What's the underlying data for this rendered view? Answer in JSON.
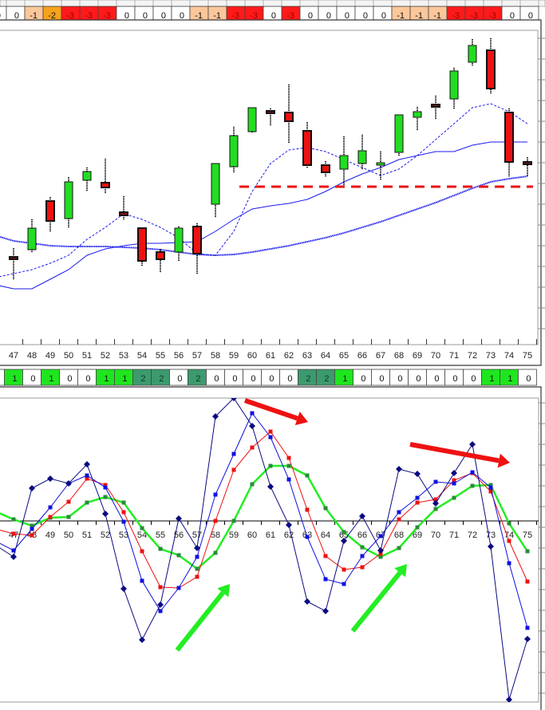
{
  "chart_data": [
    {
      "type": "table",
      "name_hint": "",
      "values": [
        0,
        0,
        -1,
        -2,
        -3,
        -3,
        -3,
        0,
        0,
        0,
        0,
        -1,
        -1,
        -3,
        -3,
        0,
        -3,
        0,
        0,
        0,
        0,
        0,
        -1,
        -1,
        -1,
        -3,
        -3,
        -3,
        0,
        0
      ],
      "colors": {
        "0": "#ffffff",
        "-1": "#fbc79a",
        "-2": "#f7a21b",
        "-3": "#ff1a1a"
      }
    },
    {
      "type": "candlestick",
      "categories": [
        "47",
        "48",
        "49",
        "50",
        "51",
        "52",
        "53",
        "54",
        "55",
        "56",
        "57",
        "58",
        "59",
        "60",
        "61",
        "62",
        "63",
        "64",
        "65",
        "66",
        "67",
        "68",
        "69",
        "70",
        "71",
        "72",
        "73",
        "74",
        "75"
      ],
      "ohlc": [
        [
          178,
          189,
          149,
          176
        ],
        [
          187,
          225,
          184,
          214
        ],
        [
          248,
          253,
          210,
          223
        ],
        [
          226,
          278,
          215,
          272
        ],
        [
          274,
          290,
          260,
          285
        ],
        [
          271,
          301,
          258,
          265
        ],
        [
          234,
          254,
          225,
          230
        ],
        [
          214,
          214,
          167,
          173
        ],
        [
          184,
          188,
          158,
          175
        ],
        [
          184,
          216,
          172,
          214
        ],
        [
          216,
          220,
          157,
          182
        ],
        [
          244,
          295,
          228,
          295
        ],
        [
          291,
          341,
          284,
          330
        ],
        [
          335,
          365,
          333,
          365
        ],
        [
          361,
          364,
          342,
          359
        ],
        [
          359,
          394,
          320,
          348
        ],
        [
          336,
          347,
          290,
          293
        ],
        [
          293,
          298,
          278,
          284
        ],
        [
          288,
          329,
          267,
          305
        ],
        [
          295,
          331,
          288,
          311
        ],
        [
          294,
          310,
          274,
          296
        ],
        [
          309,
          356,
          304,
          356
        ],
        [
          353,
          366,
          336,
          360
        ],
        [
          369,
          380,
          350,
          366
        ],
        [
          376,
          415,
          364,
          411
        ],
        [
          422,
          451,
          417,
          443
        ],
        [
          437,
          452,
          383,
          389
        ],
        [
          359,
          364,
          278,
          297
        ],
        [
          297,
          303,
          279,
          295
        ]
      ],
      "doji": [
        "47",
        "53",
        "61",
        "70",
        "75"
      ],
      "up_color": "#22dd22",
      "down_color": "#ee1111",
      "doji_color": "#222222",
      "moving_averages": [
        {
          "style": "dashed",
          "color": "#1a1aee",
          "x": [
            46,
            47,
            48,
            49,
            50,
            51,
            52,
            53,
            54,
            55,
            56,
            57,
            58,
            59,
            60,
            61,
            62,
            63,
            64,
            65,
            66,
            67,
            68,
            69,
            70,
            71,
            72,
            73,
            74,
            75
          ],
          "values": [
            152,
            157,
            162,
            170,
            180,
            200,
            215,
            232,
            225,
            215,
            202,
            182,
            180,
            210,
            260,
            295,
            312,
            315,
            310,
            300,
            290,
            280,
            288,
            305,
            325,
            345,
            365,
            370,
            360,
            345
          ]
        },
        {
          "style": "thin",
          "color": "#1a1aee",
          "x": [
            46,
            47,
            48,
            49,
            50,
            51,
            52,
            53,
            54,
            55,
            56,
            57,
            58,
            59,
            60,
            61,
            62,
            63,
            64,
            65,
            66,
            67,
            68,
            69,
            70,
            71,
            72,
            73,
            74,
            75
          ],
          "values": [
            143,
            138,
            138,
            150,
            162,
            180,
            188,
            192,
            195,
            195,
            196,
            197,
            210,
            225,
            238,
            242,
            245,
            250,
            260,
            272,
            282,
            290,
            300,
            305,
            310,
            310,
            318,
            322,
            322,
            322
          ]
        },
        {
          "style": "thick",
          "color": "#1a1aee",
          "x": [
            46,
            47,
            48,
            49,
            50,
            51,
            52,
            53,
            54,
            55,
            56,
            57,
            58,
            59,
            60,
            61,
            62,
            63,
            64,
            65,
            66,
            67,
            68,
            69,
            70,
            71,
            72,
            73,
            74,
            75
          ],
          "values": [
            205,
            198,
            195,
            192,
            191,
            191,
            191,
            190,
            189,
            187,
            184,
            181,
            180,
            181,
            184,
            188,
            192,
            197,
            202,
            208,
            215,
            222,
            230,
            238,
            246,
            255,
            264,
            272,
            276,
            279
          ]
        }
      ],
      "support_level": {
        "value": 266,
        "from": "59",
        "to": "75",
        "color": "#ee1111",
        "style": "dashed"
      },
      "grid": false,
      "xtick_labels": [
        "47",
        "48",
        "49",
        "50",
        "51",
        "52",
        "53",
        "54",
        "55",
        "56",
        "57",
        "58",
        "59",
        "60",
        "61",
        "62",
        "63",
        "64",
        "65",
        "66",
        "67",
        "68",
        "69",
        "70",
        "71",
        "72",
        "73",
        "74",
        "75"
      ]
    },
    {
      "type": "table",
      "values": [
        0,
        1,
        0,
        1,
        0,
        0,
        1,
        1,
        2,
        2,
        0,
        2,
        0,
        0,
        0,
        0,
        0,
        2,
        2,
        1,
        0,
        0,
        0,
        0,
        0,
        0,
        0,
        1,
        1,
        0
      ],
      "colors": {
        "0": "#ffffff",
        "1": "#1ee61e",
        "2": "#3c9a6e"
      }
    },
    {
      "type": "line",
      "x": [
        46,
        47,
        48,
        49,
        50,
        51,
        52,
        53,
        54,
        55,
        56,
        57,
        58,
        59,
        60,
        61,
        62,
        63,
        64,
        65,
        66,
        67,
        68,
        69,
        70,
        71,
        72,
        73,
        74,
        75
      ],
      "series": [
        {
          "color": "#0a0a80",
          "marker": "diamond",
          "width": 1,
          "values": [
            -30,
            -45,
            41,
            53,
            47,
            71,
            9,
            -85,
            -149,
            -105,
            3,
            -34,
            131,
            154,
            119,
            43,
            -5,
            -101,
            -113,
            -25,
            6,
            -37,
            65,
            59,
            22,
            60,
            96,
            -32,
            -224,
            -148
          ]
        },
        {
          "color": "#1010e0",
          "marker": "square",
          "width": 1,
          "values": [
            -25,
            -37,
            -10,
            17,
            47,
            57,
            42,
            -1,
            -75,
            -113,
            -84,
            -45,
            33,
            84,
            135,
            105,
            52,
            -20,
            -73,
            -79,
            -44,
            -19,
            11,
            29,
            49,
            47,
            61,
            42,
            -53,
            -134
          ]
        },
        {
          "color": "#ee1111",
          "marker": "square",
          "width": 1,
          "values": [
            -10,
            -16,
            -18,
            5,
            24,
            53,
            45,
            11,
            -38,
            -83,
            -84,
            -70,
            0,
            64,
            92,
            112,
            79,
            14,
            -44,
            -61,
            -58,
            -41,
            2,
            23,
            27,
            51,
            60,
            37,
            -25,
            -76
          ]
        },
        {
          "color": "#22ee22",
          "marker": "square",
          "marker_color": "#2a8a3a",
          "width": 2.5,
          "values": [
            12,
            2,
            -6,
            4,
            5,
            23,
            30,
            23,
            -9,
            -35,
            -43,
            -60,
            -40,
            0,
            46,
            69,
            69,
            57,
            16,
            -14,
            -33,
            -45,
            -34,
            -8,
            15,
            29,
            44,
            45,
            -3,
            -38
          ]
        }
      ],
      "zero_line": true,
      "annotations": [
        {
          "type": "arrow",
          "color": "#ee1111",
          "direction": "down-right",
          "near": [
            "59",
            "63"
          ]
        },
        {
          "type": "arrow",
          "color": "#ee1111",
          "direction": "down-right",
          "near": [
            "68",
            "74"
          ]
        },
        {
          "type": "arrow",
          "color": "#22ee22",
          "direction": "up-right",
          "near": [
            "55",
            "58"
          ]
        },
        {
          "type": "arrow",
          "color": "#22ee22",
          "direction": "up-right",
          "near": [
            "65",
            "68"
          ]
        }
      ],
      "xtick_labels": [
        "47",
        "48",
        "49",
        "50",
        "51",
        "52",
        "53",
        "54",
        "55",
        "56",
        "57",
        "58",
        "59",
        "60",
        "61",
        "62",
        "63",
        "64",
        "65",
        "66",
        "67",
        "68",
        "69",
        "70",
        "71",
        "72",
        "73",
        "74",
        "75"
      ]
    }
  ]
}
